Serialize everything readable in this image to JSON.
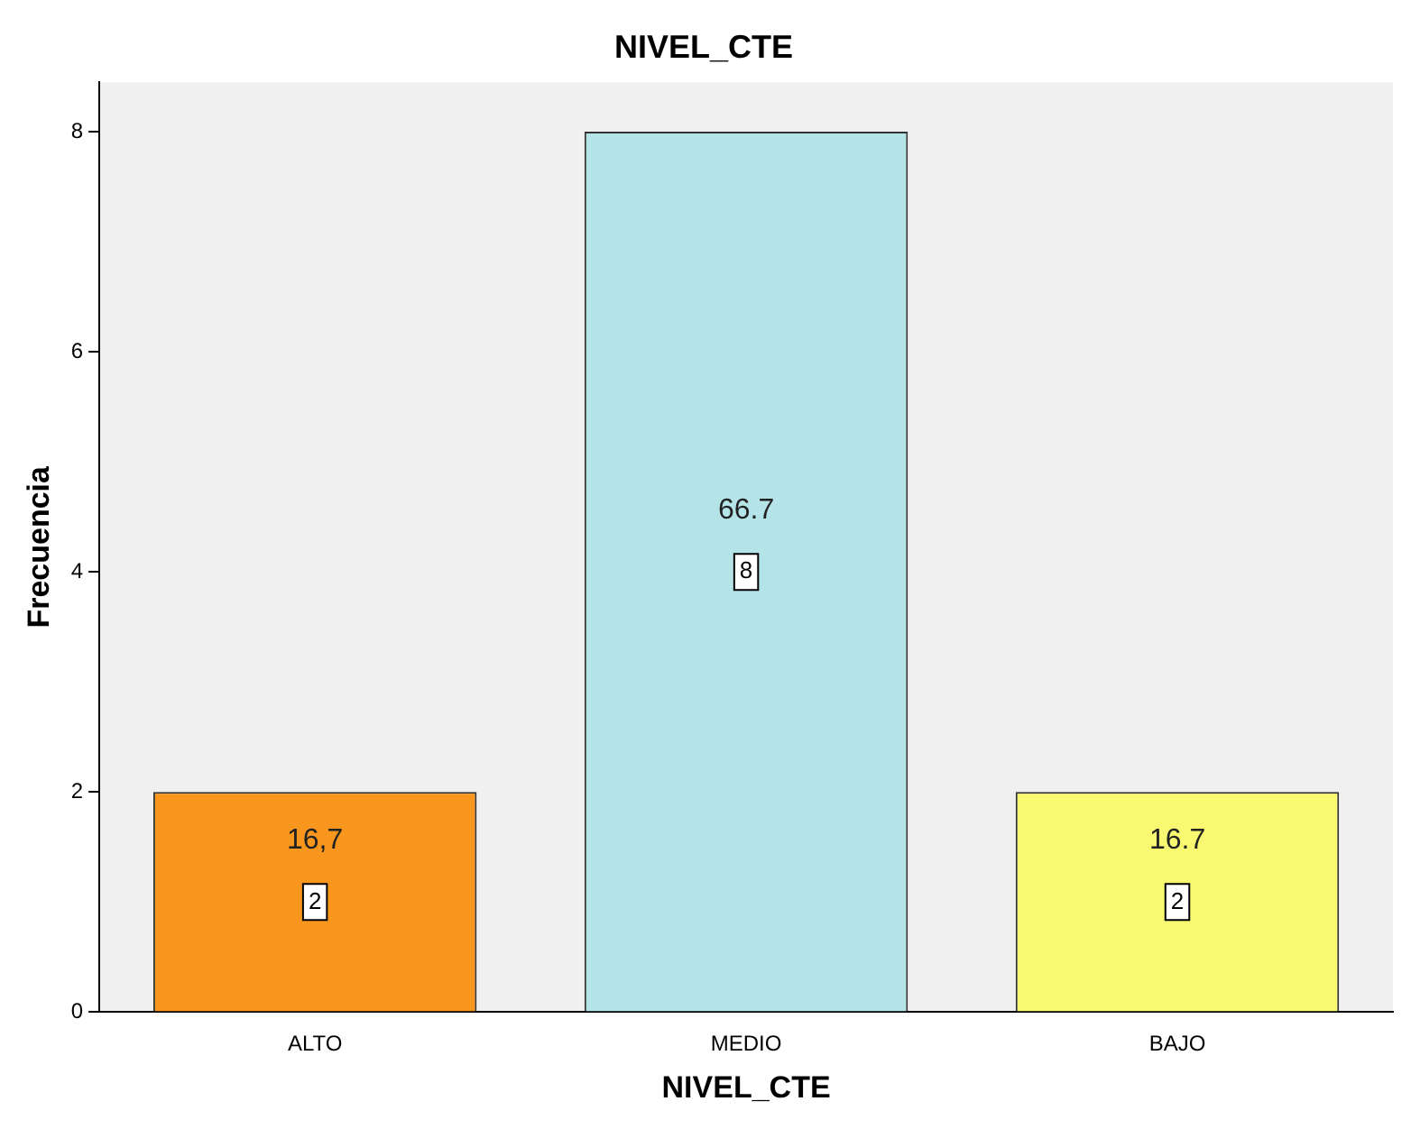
{
  "chart_data": {
    "type": "bar",
    "title": "NIVEL_CTE",
    "xlabel": "NIVEL_CTE",
    "ylabel": "Frecuencia",
    "categories": [
      "ALTO",
      "MEDIO",
      "BAJO"
    ],
    "values": [
      2,
      8,
      2
    ],
    "colors": [
      "#f8961e",
      "#b4e4e8",
      "#f9f871"
    ],
    "ylim": [
      0,
      8.45
    ],
    "yticks": [
      0,
      2,
      4,
      6,
      8
    ],
    "value_labels": [
      "2",
      "8",
      "2"
    ],
    "annotations": [
      "16,7",
      "66.7",
      "16.7"
    ]
  }
}
